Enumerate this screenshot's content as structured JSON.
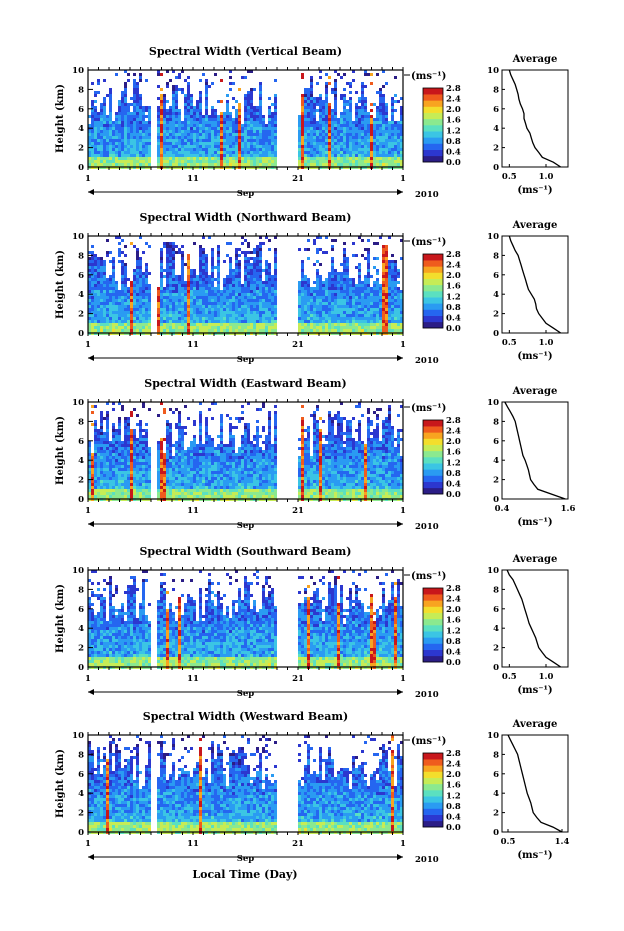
{
  "xlabel": "Local Time (Day)",
  "unit_label": "(ms⁻¹)",
  "avg_title": "Average",
  "height_label": "Height (km)",
  "month_label": "Sep",
  "year_label": "2010",
  "colorscale": [
    "#2b1d86",
    "#2c37cf",
    "#2566f0",
    "#2a9bf2",
    "#3bc5e4",
    "#5be0c0",
    "#8be98f",
    "#c6ec56",
    "#f3de2c",
    "#f8a420",
    "#ef5b1d",
    "#c8171b"
  ],
  "chart_data": [
    {
      "type": "heatmap",
      "title": "Spectral Width (Vertical Beam)",
      "ylabel": "Height (km)",
      "ylim": [
        0,
        10
      ],
      "yticks": [
        0,
        2,
        4,
        6,
        8,
        10
      ],
      "xlim": [
        1,
        31
      ],
      "xticks": [
        "1",
        "11",
        "21",
        "1"
      ],
      "colorbar": {
        "label": "(ms⁻¹)",
        "ticks": [
          "0.0",
          "0.4",
          "0.8",
          "1.2",
          "1.6",
          "2.0",
          "2.4",
          "2.8"
        ]
      },
      "average": {
        "title": "Average",
        "xlabel": "(ms⁻¹)",
        "xticks": [
          "0.5",
          "1.0"
        ],
        "xlim": [
          0.4,
          1.3
        ],
        "height": [
          0,
          0.5,
          1,
          1.5,
          2,
          2.5,
          3,
          3.5,
          4,
          4.5,
          5,
          5.5,
          6,
          6.5,
          7,
          7.5,
          8,
          8.5,
          9,
          9.5,
          10
        ],
        "values": [
          1.2,
          1.1,
          0.95,
          0.9,
          0.85,
          0.82,
          0.8,
          0.78,
          0.74,
          0.72,
          0.7,
          0.7,
          0.68,
          0.65,
          0.63,
          0.62,
          0.6,
          0.58,
          0.55,
          0.52,
          0.5
        ]
      }
    },
    {
      "type": "heatmap",
      "title": "Spectral Width (Northward Beam)",
      "ylabel": "Height (km)",
      "ylim": [
        0,
        10
      ],
      "yticks": [
        0,
        2,
        4,
        6,
        8,
        10
      ],
      "xlim": [
        1,
        31
      ],
      "xticks": [
        "1",
        "11",
        "21",
        "1"
      ],
      "colorbar": {
        "label": "(ms⁻¹)",
        "ticks": [
          "0.0",
          "0.4",
          "0.8",
          "1.2",
          "1.6",
          "2.0",
          "2.4",
          "2.8"
        ]
      },
      "average": {
        "title": "Average",
        "xlabel": "(ms⁻¹)",
        "xticks": [
          "0.5",
          "1.0"
        ],
        "xlim": [
          0.4,
          1.3
        ],
        "height": [
          0,
          0.5,
          1,
          1.5,
          2,
          2.5,
          3,
          3.5,
          4,
          4.5,
          5,
          5.5,
          6,
          6.5,
          7,
          7.5,
          8,
          8.5,
          9,
          9.5,
          10
        ],
        "values": [
          1.2,
          1.1,
          1.0,
          0.95,
          0.9,
          0.87,
          0.86,
          0.84,
          0.8,
          0.76,
          0.74,
          0.72,
          0.7,
          0.68,
          0.66,
          0.64,
          0.62,
          0.58,
          0.55,
          0.52,
          0.5
        ]
      }
    },
    {
      "type": "heatmap",
      "title": "Spectral Width (Eastward Beam)",
      "ylabel": "Height (km)",
      "ylim": [
        0,
        10
      ],
      "yticks": [
        0,
        2,
        4,
        6,
        8,
        10
      ],
      "xlim": [
        1,
        31
      ],
      "xticks": [
        "1",
        "11",
        "21",
        "1"
      ],
      "colorbar": {
        "label": "(ms⁻¹)",
        "ticks": [
          "0.0",
          "0.4",
          "0.8",
          "1.2",
          "1.6",
          "2.0",
          "2.4",
          "2.8"
        ]
      },
      "average": {
        "title": "Average",
        "xlabel": "(ms⁻¹)",
        "xticks": [
          "0.4",
          "1.6"
        ],
        "xlim": [
          0.4,
          1.6
        ],
        "height": [
          0,
          0.5,
          1,
          1.5,
          2,
          2.5,
          3,
          3.5,
          4,
          4.5,
          5,
          5.5,
          6,
          6.5,
          7,
          7.5,
          8,
          8.5,
          9,
          9.5,
          10
        ],
        "values": [
          1.55,
          1.3,
          1.05,
          0.98,
          0.92,
          0.9,
          0.88,
          0.85,
          0.82,
          0.78,
          0.76,
          0.74,
          0.72,
          0.7,
          0.68,
          0.66,
          0.64,
          0.6,
          0.55,
          0.5,
          0.45
        ]
      }
    },
    {
      "type": "heatmap",
      "title": "Spectral Width (Southward Beam)",
      "ylabel": "Height (km)",
      "ylim": [
        0,
        10
      ],
      "yticks": [
        0,
        2,
        4,
        6,
        8,
        10
      ],
      "xlim": [
        1,
        31
      ],
      "xticks": [
        "1",
        "11",
        "21",
        "1"
      ],
      "colorbar": {
        "label": "(ms⁻¹)",
        "ticks": [
          "0.0",
          "0.4",
          "0.8",
          "1.2",
          "1.6",
          "2.0",
          "2.4",
          "2.8"
        ]
      },
      "average": {
        "title": "Average",
        "xlabel": "(ms⁻¹)",
        "xticks": [
          "0.5",
          "1.0"
        ],
        "xlim": [
          0.4,
          1.3
        ],
        "height": [
          0,
          0.5,
          1,
          1.5,
          2,
          2.5,
          3,
          3.5,
          4,
          4.5,
          5,
          5.5,
          6,
          6.5,
          7,
          7.5,
          8,
          8.5,
          9,
          9.5,
          10
        ],
        "values": [
          1.2,
          1.1,
          1.0,
          0.95,
          0.9,
          0.88,
          0.86,
          0.83,
          0.8,
          0.77,
          0.75,
          0.73,
          0.71,
          0.69,
          0.67,
          0.64,
          0.61,
          0.58,
          0.55,
          0.5,
          0.47
        ]
      }
    },
    {
      "type": "heatmap",
      "title": "Spectral Width (Westward Beam)",
      "ylabel": "Height (km)",
      "ylim": [
        0,
        10
      ],
      "yticks": [
        0,
        2,
        4,
        6,
        8,
        10
      ],
      "xlim": [
        1,
        31
      ],
      "xticks": [
        "1",
        "11",
        "21",
        "1"
      ],
      "colorbar": {
        "label": "(ms⁻¹)",
        "ticks": [
          "0.0",
          "0.4",
          "0.8",
          "1.2",
          "1.6",
          "2.0",
          "2.4",
          "2.8"
        ]
      },
      "average": {
        "title": "Average",
        "xlabel": "(ms⁻¹)",
        "xticks": [
          "0.5",
          "1.4"
        ],
        "xlim": [
          0.4,
          1.5
        ],
        "height": [
          0,
          0.5,
          1,
          1.5,
          2,
          2.5,
          3,
          3.5,
          4,
          4.5,
          5,
          5.5,
          6,
          6.5,
          7,
          7.5,
          8,
          8.5,
          9,
          9.5,
          10
        ],
        "values": [
          1.4,
          1.25,
          1.05,
          0.98,
          0.92,
          0.9,
          0.88,
          0.85,
          0.82,
          0.8,
          0.78,
          0.76,
          0.74,
          0.72,
          0.7,
          0.68,
          0.66,
          0.62,
          0.58,
          0.54,
          0.5
        ]
      }
    }
  ]
}
